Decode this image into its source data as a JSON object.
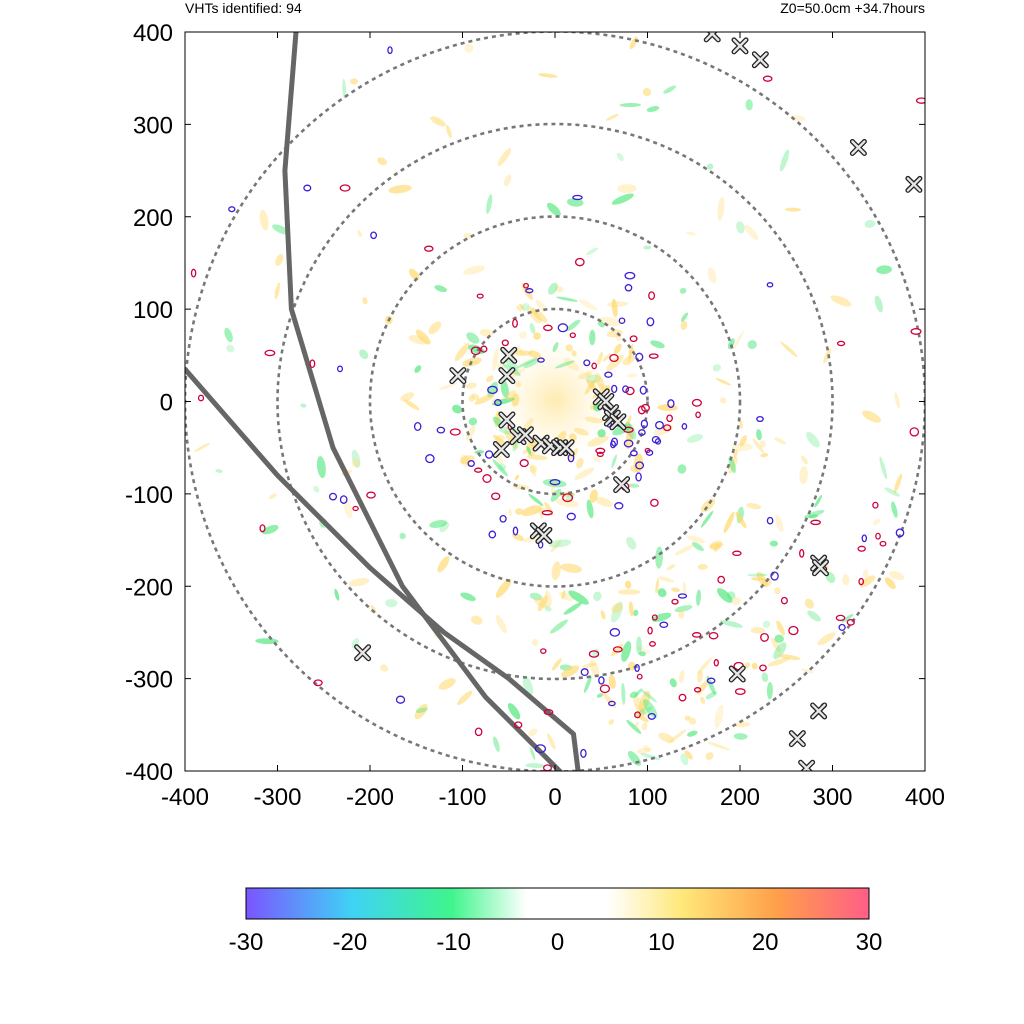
{
  "header": {
    "count_label": "VHTs identified: 94",
    "time_label": "Z0=50.0cm  +34.7hours"
  },
  "chart_data": {
    "type": "scatter",
    "title": "",
    "xlabel": "",
    "ylabel": "",
    "xlim": [
      -400,
      400
    ],
    "ylim": [
      -400,
      400
    ],
    "x_ticks": [
      "-400",
      "-300",
      "-200",
      "-100",
      "0",
      "100",
      "200",
      "300",
      "400"
    ],
    "y_ticks": [
      "400",
      "300",
      "200",
      "100",
      "0",
      "-100",
      "-200",
      "-300",
      "-400"
    ],
    "range_rings_radius": [
      100,
      200,
      300,
      400
    ],
    "vht_count": 94,
    "vht_markers": [
      {
        "x": -50,
        "y": 50
      },
      {
        "x": -52,
        "y": 28
      },
      {
        "x": -105,
        "y": 28
      },
      {
        "x": -52,
        "y": -20
      },
      {
        "x": -58,
        "y": -52
      },
      {
        "x": -40,
        "y": -38
      },
      {
        "x": -32,
        "y": -36
      },
      {
        "x": -15,
        "y": -45
      },
      {
        "x": -5,
        "y": -48
      },
      {
        "x": 5,
        "y": -50
      },
      {
        "x": 12,
        "y": -50
      },
      {
        "x": 50,
        "y": 5
      },
      {
        "x": 55,
        "y": 0
      },
      {
        "x": 60,
        "y": -12
      },
      {
        "x": 62,
        "y": -18
      },
      {
        "x": 68,
        "y": -22
      },
      {
        "x": 72,
        "y": -90
      },
      {
        "x": -18,
        "y": -140
      },
      {
        "x": -12,
        "y": -145
      },
      {
        "x": 285,
        "y": -175
      },
      {
        "x": 287,
        "y": -180
      },
      {
        "x": 197,
        "y": -295
      },
      {
        "x": 285,
        "y": -335
      },
      {
        "x": 262,
        "y": -365
      },
      {
        "x": 272,
        "y": -397
      },
      {
        "x": -208,
        "y": -272
      },
      {
        "x": 170,
        "y": 398
      },
      {
        "x": 200,
        "y": 385
      },
      {
        "x": 222,
        "y": 370
      },
      {
        "x": 328,
        "y": 275
      },
      {
        "x": 388,
        "y": 235
      }
    ],
    "tracks": [
      {
        "points": [
          [
            -280,
            400
          ],
          [
            -292,
            250
          ],
          [
            -285,
            100
          ],
          [
            -240,
            -50
          ],
          [
            -165,
            -200
          ],
          [
            -75,
            -320
          ],
          [
            5,
            -400
          ]
        ]
      },
      {
        "points": [
          [
            -400,
            35
          ],
          [
            -300,
            -80
          ],
          [
            -200,
            -180
          ],
          [
            -120,
            -250
          ],
          [
            -50,
            -300
          ],
          [
            20,
            -360
          ],
          [
            25,
            -400
          ]
        ]
      }
    ],
    "colorbar": {
      "min": -30,
      "max": 30,
      "ticks": [
        "-30",
        "-20",
        "-10",
        "0",
        "10",
        "20",
        "30"
      ],
      "colors": [
        "#7b55ff",
        "#3fd2f5",
        "#3ff58c",
        "#ffffff",
        "#ffffff",
        "#ffe87a",
        "#ffa04a",
        "#ff5e86"
      ]
    },
    "colors": {
      "ring": "#777777",
      "track": "#666666",
      "contour_negative": "#3b1fd6",
      "contour_positive": "#d0003a",
      "field_positive": "#ffd86a",
      "field_negative": "#4ee67a"
    }
  }
}
